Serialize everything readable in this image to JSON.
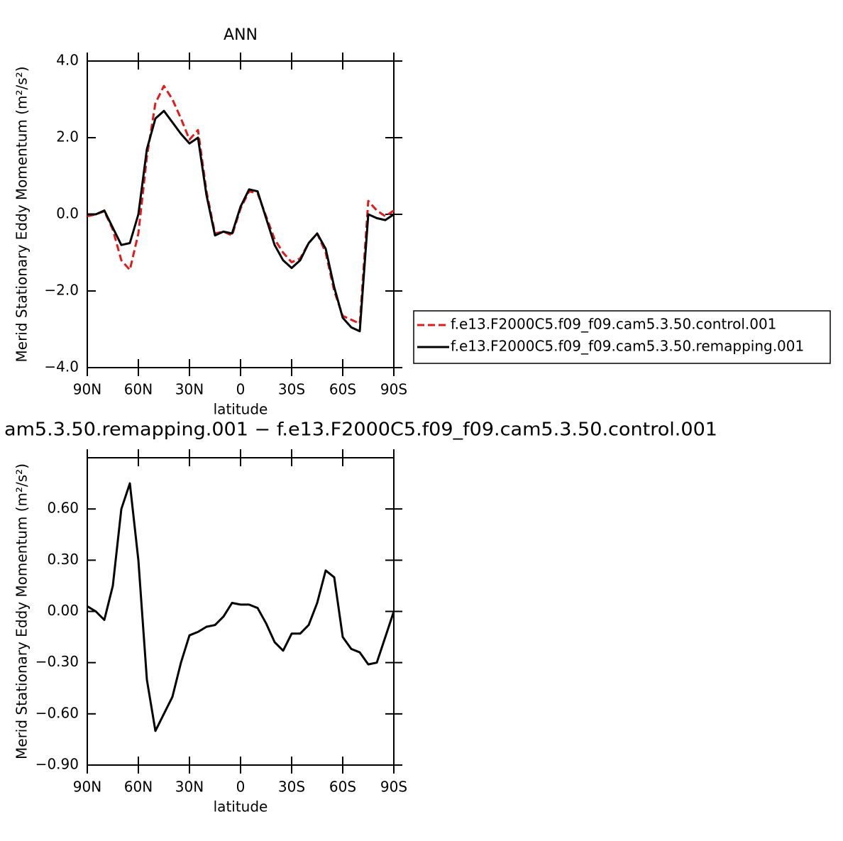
{
  "chart_data": [
    {
      "type": "line",
      "title": "ANN",
      "x_label": "latitude",
      "y_label": "Merid Stationary Eddy Momentum (m²/s²)",
      "x": [
        90,
        85,
        80,
        75,
        70,
        65,
        60,
        55,
        50,
        45,
        40,
        35,
        30,
        25,
        20,
        15,
        10,
        5,
        0,
        -5,
        -10,
        -15,
        -20,
        -25,
        -30,
        -35,
        -40,
        -45,
        -50,
        -55,
        -60,
        -65,
        -70,
        -75,
        -80,
        -85,
        -90
      ],
      "series": [
        {
          "name": "f.e13.F2000C5.f09_f09.cam5.3.50.control.001",
          "color": "#e31a1c",
          "line_style": "dashed",
          "values": [
            -0.05,
            0.0,
            0.08,
            -0.4,
            -1.2,
            -1.45,
            -0.5,
            1.5,
            2.9,
            3.35,
            3.0,
            2.5,
            1.95,
            2.2,
            0.6,
            -0.5,
            -0.45,
            -0.55,
            0.15,
            0.6,
            0.55,
            -0.05,
            -0.65,
            -1.0,
            -1.25,
            -1.15,
            -0.75,
            -0.5,
            -1.0,
            -2.0,
            -2.65,
            -2.75,
            -2.85,
            0.35,
            0.1,
            -0.05,
            0.1
          ]
        },
        {
          "name": "f.e13.F2000C5.f09_f09.cam5.3.50.remapping.001",
          "color": "#000000",
          "line_style": "solid",
          "values": [
            0.0,
            0.0,
            0.1,
            -0.35,
            -0.8,
            -0.75,
            0.0,
            1.7,
            2.5,
            2.7,
            2.4,
            2.1,
            1.85,
            2.0,
            0.5,
            -0.55,
            -0.45,
            -0.5,
            0.2,
            0.65,
            0.6,
            -0.1,
            -0.8,
            -1.2,
            -1.4,
            -1.2,
            -0.75,
            -0.5,
            -0.9,
            -1.9,
            -2.7,
            -2.95,
            -3.05,
            0.0,
            -0.1,
            -0.15,
            0.0
          ]
        }
      ],
      "xlim": [
        90,
        -90
      ],
      "xticks": [
        {
          "value": 90,
          "label": "90N"
        },
        {
          "value": 60,
          "label": "60N"
        },
        {
          "value": 30,
          "label": "30N"
        },
        0,
        {
          "value": -30,
          "label": "30S"
        },
        {
          "value": -60,
          "label": "60S"
        },
        {
          "value": -90,
          "label": "90S"
        }
      ],
      "ylim": [
        -4,
        4
      ],
      "yticks": [
        {
          "value": -4,
          "label": "−4.0"
        },
        {
          "value": -2,
          "label": "−2.0"
        },
        {
          "value": 0,
          "label": "0.0"
        },
        {
          "value": 2,
          "label": "2.0"
        },
        {
          "value": 4,
          "label": "4.0"
        }
      ],
      "legend": "right"
    },
    {
      "type": "line",
      "title": "am5.3.50.remapping.001 − f.e13.F2000C5.f09_f09.cam5.3.50.control.001",
      "x_label": "latitude",
      "y_label": "Merid Stationary Eddy Momentum (m²/s²)",
      "x": [
        90,
        85,
        80,
        75,
        70,
        65,
        60,
        55,
        50,
        45,
        40,
        35,
        30,
        25,
        20,
        15,
        10,
        5,
        0,
        -5,
        -10,
        -15,
        -20,
        -25,
        -30,
        -35,
        -40,
        -45,
        -50,
        -55,
        -60,
        -65,
        -70,
        -75,
        -80,
        -85,
        -90
      ],
      "series": [
        {
          "color": "#000000",
          "line_style": "solid",
          "values": [
            0.03,
            0.0,
            -0.05,
            0.15,
            0.6,
            0.75,
            0.3,
            -0.4,
            -0.7,
            -0.6,
            -0.5,
            -0.3,
            -0.14,
            -0.12,
            -0.09,
            -0.08,
            -0.03,
            0.05,
            0.04,
            0.04,
            0.02,
            -0.07,
            -0.18,
            -0.23,
            -0.13,
            -0.13,
            -0.08,
            0.05,
            0.24,
            0.2,
            -0.15,
            -0.22,
            -0.24,
            -0.31,
            -0.3,
            -0.15,
            0.0
          ]
        }
      ],
      "xlim": [
        90,
        -90
      ],
      "xticks": [
        {
          "value": 90,
          "label": "90N"
        },
        {
          "value": 60,
          "label": "60N"
        },
        {
          "value": 30,
          "label": "30N"
        },
        0,
        {
          "value": -30,
          "label": "30S"
        },
        {
          "value": -60,
          "label": "60S"
        },
        {
          "value": -90,
          "label": "90S"
        }
      ],
      "ylim": [
        -0.9,
        0.9
      ],
      "yticks": [
        {
          "value": -0.9,
          "label": "−0.90"
        },
        {
          "value": -0.6,
          "label": "−0.60"
        },
        {
          "value": -0.3,
          "label": "−0.30"
        },
        {
          "value": 0,
          "label": "0.00"
        },
        {
          "value": 0.3,
          "label": "0.30"
        },
        {
          "value": 0.6,
          "label": "0.60"
        }
      ]
    }
  ]
}
